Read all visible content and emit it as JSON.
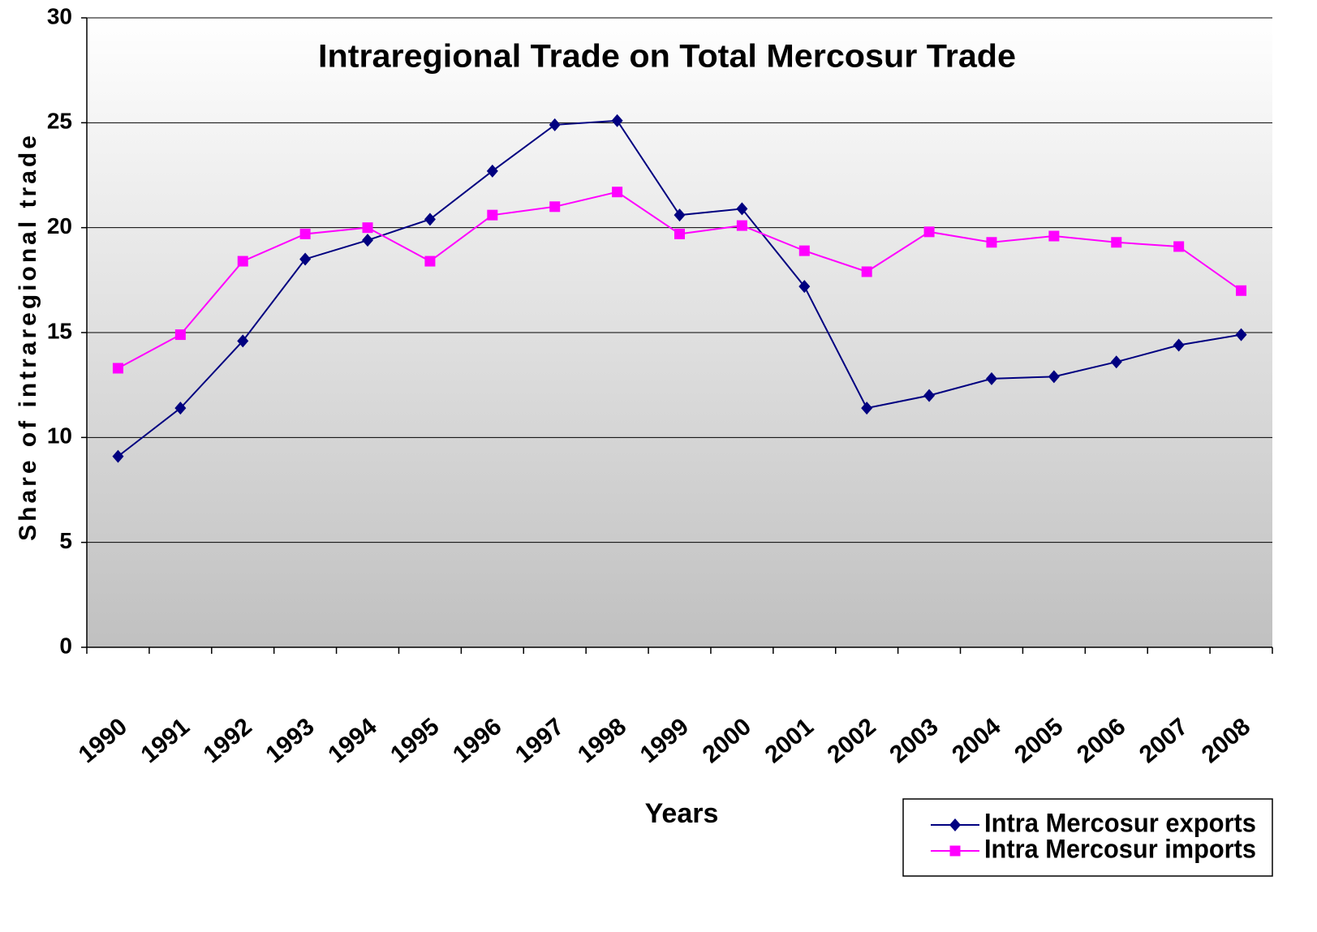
{
  "chart_data": {
    "type": "line",
    "title": "Intraregional Trade on Total Mercosur Trade",
    "x_label": "Years",
    "y_label": "Share of intraregional trade",
    "categories": [
      "1990",
      "1991",
      "1992",
      "1993",
      "1994",
      "1995",
      "1996",
      "1997",
      "1998",
      "1999",
      "2000",
      "2001",
      "2002",
      "2003",
      "2004",
      "2005",
      "2006",
      "2007",
      "2008"
    ],
    "series": [
      {
        "name": "Intra Mercosur exports",
        "color": "#000080",
        "marker": "diamond",
        "values": [
          9.1,
          11.4,
          14.6,
          18.5,
          19.4,
          20.4,
          22.7,
          24.9,
          25.1,
          20.6,
          20.9,
          17.2,
          11.4,
          12.0,
          12.8,
          12.9,
          13.6,
          14.4,
          14.9
        ]
      },
      {
        "name": "Intra Mercosur imports",
        "color": "#ff00ff",
        "marker": "square",
        "values": [
          13.3,
          14.9,
          18.4,
          19.7,
          20.0,
          18.4,
          20.6,
          21.0,
          21.7,
          19.7,
          20.1,
          18.9,
          17.9,
          19.8,
          19.3,
          19.6,
          19.3,
          19.1,
          17.0
        ]
      }
    ],
    "ylim": [
      0,
      30
    ],
    "yticks": [
      0,
      5,
      10,
      15,
      20,
      25,
      30
    ],
    "grid": true,
    "legend": "bottom-right"
  }
}
